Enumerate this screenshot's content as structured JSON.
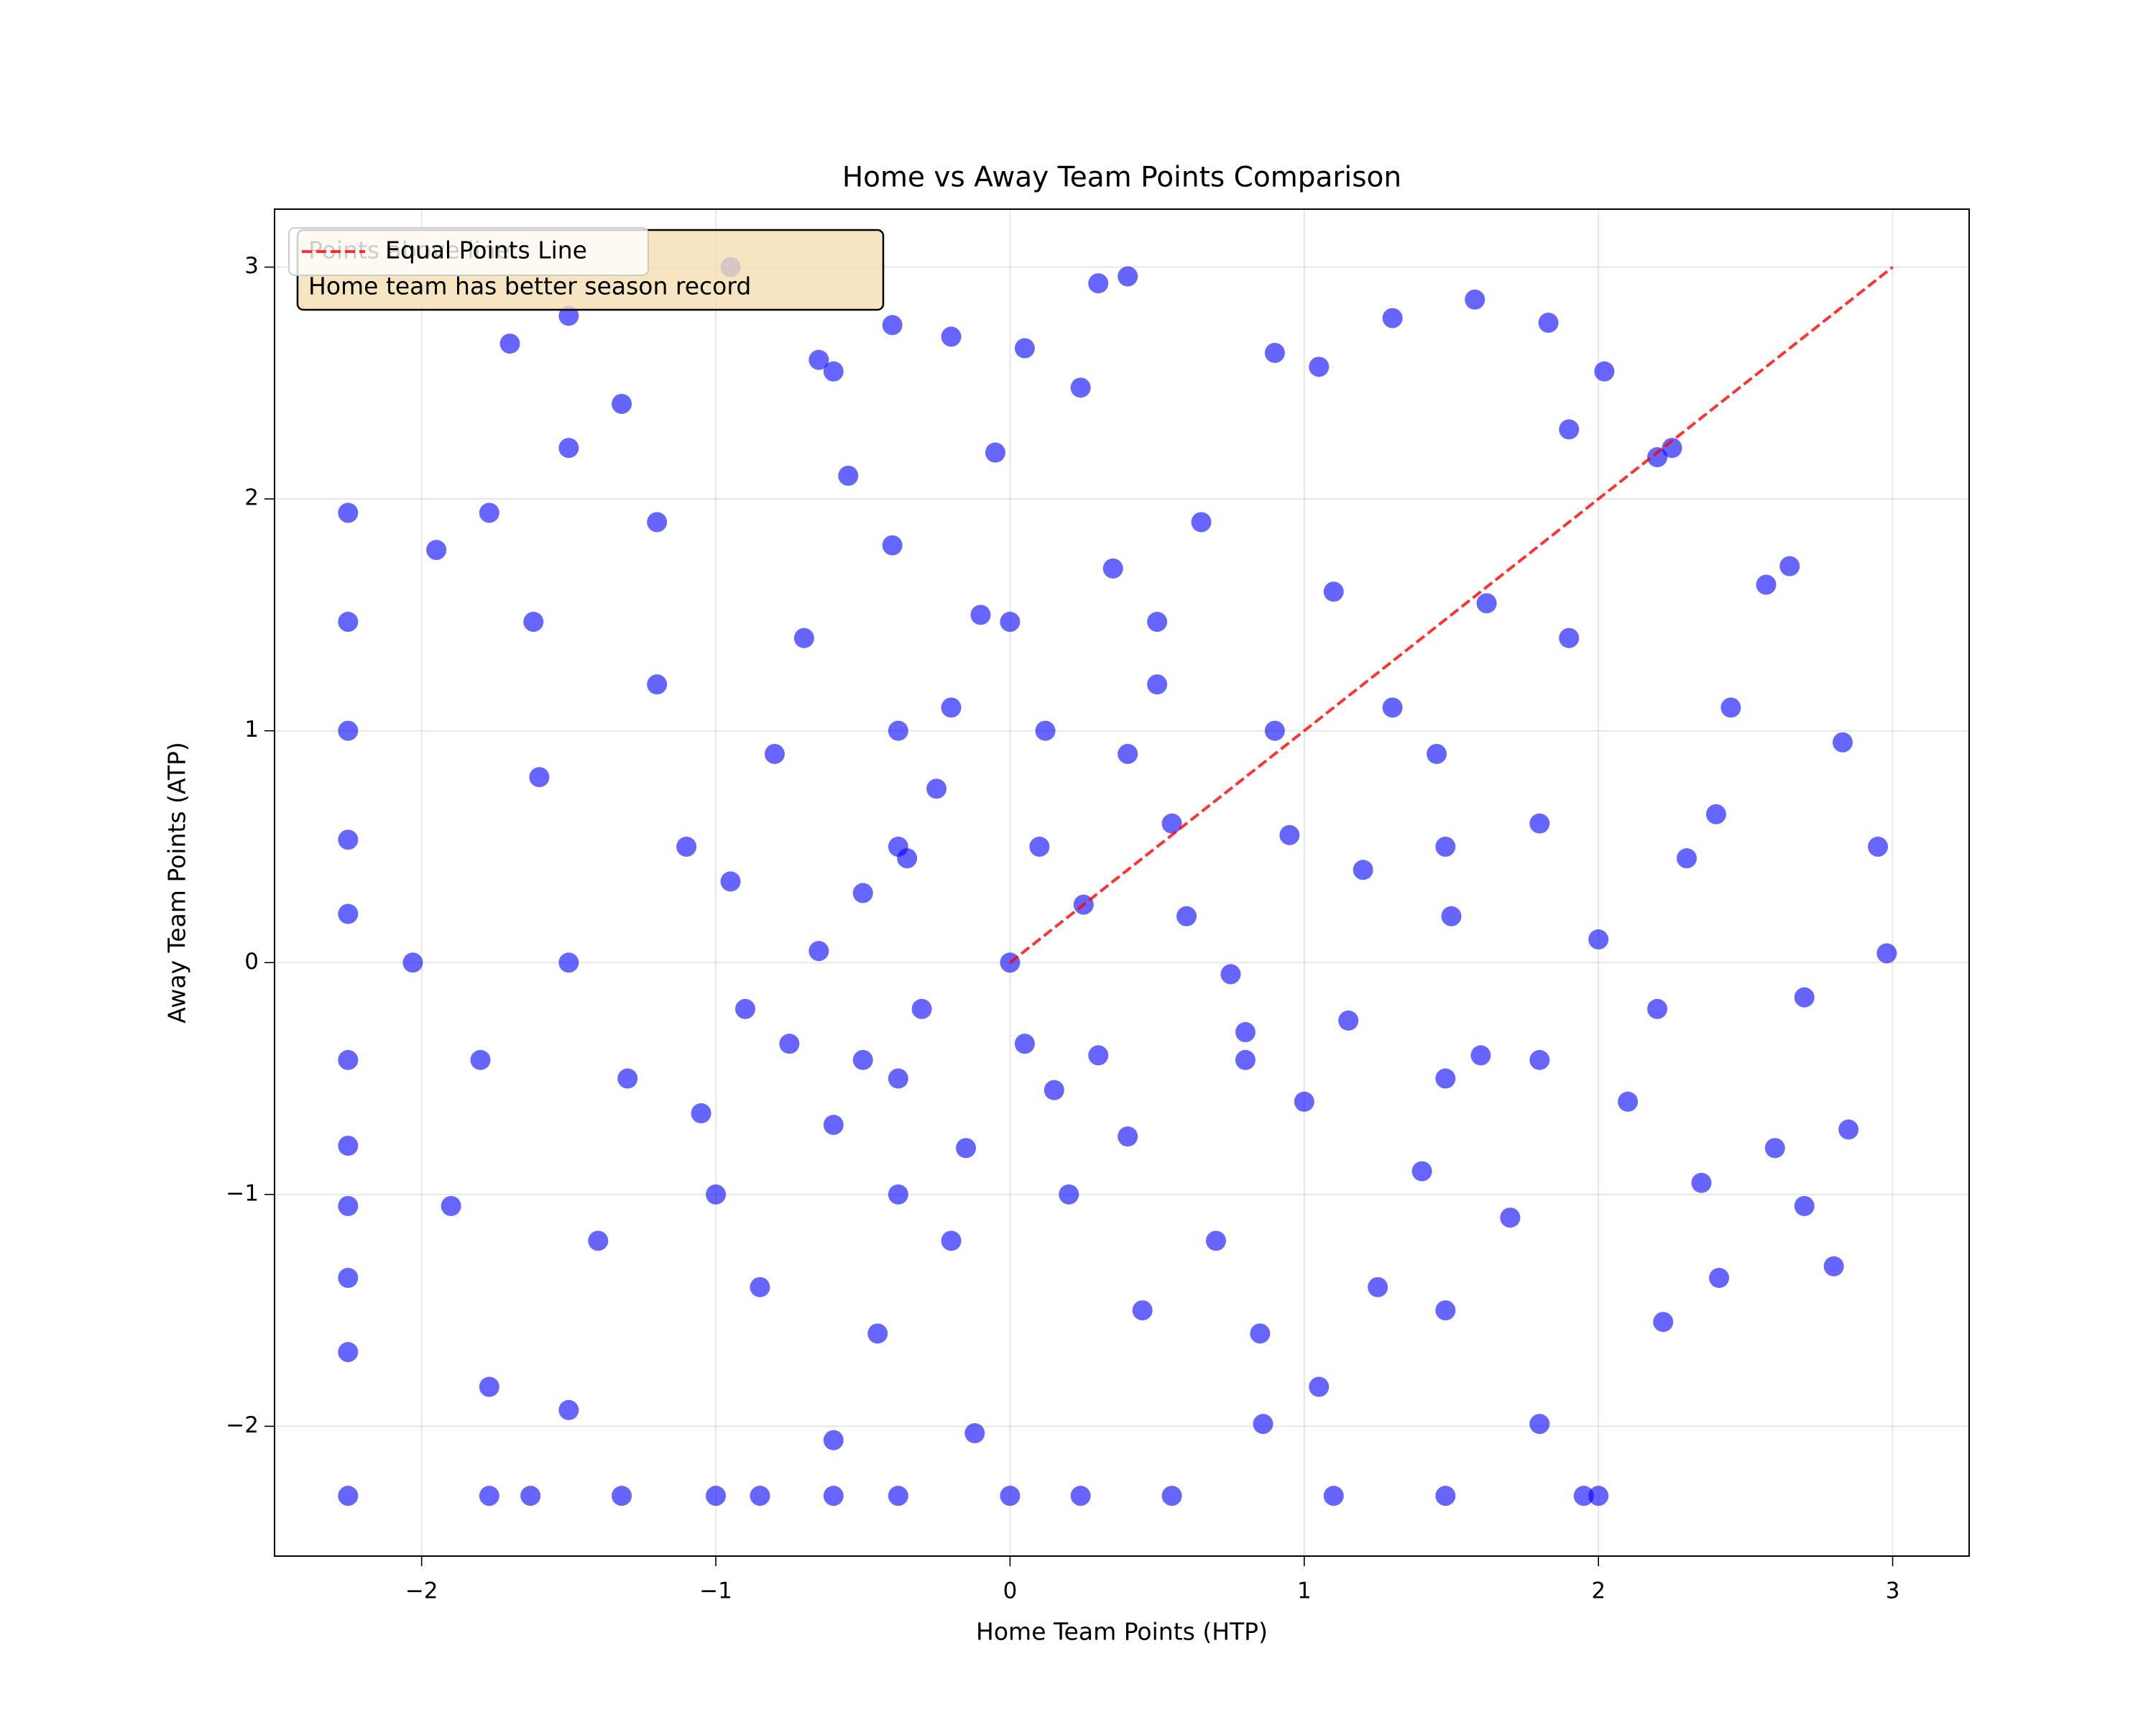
{
  "chart_data": {
    "type": "scatter",
    "title": "Home vs Away Team Points Comparison",
    "x_label": "Home Team Points (HTP)",
    "y_label": "Away Team Points (ATP)",
    "color": "blue",
    "x": [
      -2.25,
      -2.25,
      -2.25,
      -2.25,
      -2.25,
      -2.25,
      -2.25,
      -2.25,
      -2.25,
      -2.25,
      -2.25,
      -2.03,
      -1.95,
      -1.77,
      -1.7,
      -1.5,
      -1.5,
      -0.95,
      0.3,
      0.4,
      1.58,
      1.83,
      2.02,
      2.57,
      2.65,
      2.83,
      2.95,
      2.98,
      2.7,
      2.85,
      2.8,
      2.7,
      2.6,
      2.22,
      2.0,
      1.95,
      1.48,
      1.1,
      0.55,
      0.24,
      0,
      -0.38,
      -0.6,
      -0.85,
      -1.0,
      -1.32,
      -1.63,
      -1.77,
      -0.12,
      -0.6,
      0.86,
      1.8,
      -1.5,
      -1.77,
      1.05,
      2.41,
      2.4,
      2.45,
      2.2,
      2.25,
      1.9,
      0.9,
      1.05,
      -0.65,
      -0.4,
      0.05,
      0.24,
      -0.2,
      -1.32,
      -0.6,
      1.3,
      -0.5,
      -0.3,
      0.1,
      0.3,
      -0.8,
      -0.6,
      0.5,
      0.8,
      -0.1,
      0.2,
      -0.4,
      0.6,
      1.0,
      -0.9,
      1.2,
      -0.2,
      0.4,
      -0.7,
      0.9,
      1.4,
      -1.1,
      -1.0,
      0.0,
      0.15,
      -0.25,
      0.7,
      1.5,
      1.6,
      1.8,
      -1.3,
      -1.2,
      0.35,
      -0.55,
      0.65,
      1.1,
      1.3,
      -0.05,
      0.45,
      -0.45,
      1.7,
      2.0,
      2.1,
      -1.5,
      -1.6,
      -1.4,
      0.85,
      -0.85,
      1.9,
      2.2,
      0.55,
      -0.15,
      -0.65,
      0.25,
      0.05,
      -0.35,
      0.75,
      1.15,
      -0.95,
      0.95,
      -1.05,
      1.45,
      -0.2,
      0.12,
      -0.75,
      0.4,
      1.25,
      -1.2,
      1.62,
      2.3,
      2.35,
      -1.8,
      -1.9,
      -1.62,
      -0.38,
      -0.38,
      -0.38,
      -0.38,
      1.48,
      1.48,
      1.48,
      0,
      0.5,
      -0.5,
      0.8,
      1.8
    ],
    "y": [
      1.94,
      1.47,
      1.0,
      0.53,
      0.21,
      -0.42,
      -0.79,
      -1.05,
      -1.36,
      -1.68,
      -2.3,
      0,
      1.78,
      1.94,
      2.67,
      2.22,
      2.79,
      3.0,
      2.93,
      2.96,
      2.86,
      2.76,
      2.55,
      1.63,
      1.71,
      0.95,
      0.5,
      0.04,
      -0.15,
      -0.72,
      -1.31,
      -1.05,
      -0.8,
      -1.55,
      -2.3,
      -2.3,
      -2.3,
      -2.3,
      -2.3,
      -2.3,
      -2.3,
      -2.3,
      -2.3,
      -2.3,
      -2.3,
      -2.3,
      -2.3,
      -2.3,
      -2.03,
      -2.06,
      -1.99,
      -1.99,
      -1.93,
      -1.83,
      -1.83,
      -1.36,
      0.64,
      1.1,
      2.18,
      2.22,
      2.3,
      2.63,
      2.57,
      2.6,
      2.75,
      2.65,
      2.48,
      2.7,
      2.41,
      2.55,
      2.78,
      0.3,
      -0.2,
      0.5,
      -0.4,
      0.9,
      -0.7,
      1.2,
      -0.3,
      1.5,
      -1.0,
      1.8,
      0.2,
      -0.6,
      -0.2,
      0.4,
      -1.2,
      0.9,
      1.4,
      1.0,
      -0.9,
      0.5,
      -1.0,
      0.0,
      -0.55,
      0.75,
      -1.2,
      0.2,
      -0.4,
      0.6,
      -0.5,
      1.2,
      1.7,
      2.1,
      1.9,
      1.6,
      1.1,
      2.2,
      -1.5,
      -1.6,
      -1.1,
      0.1,
      -0.6,
      0.0,
      0.8,
      -1.2,
      -1.6,
      -1.4,
      1.4,
      -0.2,
      0.6,
      -0.8,
      0.05,
      0.25,
      -0.35,
      0.45,
      -0.05,
      -0.25,
      0.35,
      0.55,
      -0.65,
      0.9,
      1.1,
      1.0,
      -0.35,
      -0.75,
      -1.4,
      1.9,
      1.55,
      0.45,
      -0.95,
      -0.42,
      -1.05,
      1.47,
      1.0,
      -0.5,
      0.5,
      -1.0,
      -0.5,
      0.5,
      -1.5,
      1.47,
      1.47,
      -0.42,
      -0.42,
      -0.42
    ],
    "reference_line": {
      "name": "Equal Points Line",
      "color": "red",
      "x": [
        0,
        3
      ],
      "y": [
        0,
        3
      ]
    },
    "annotation": [
      "Points above line:",
      "Home team has better season record"
    ],
    "xlim": [
      -2.5,
      3.26
    ],
    "ylim": [
      -2.56,
      3.25
    ],
    "xticks": [
      {
        "value": -2,
        "label": "−2"
      },
      {
        "value": -1,
        "label": "−1"
      },
      0,
      1,
      2,
      3
    ],
    "yticks": [
      {
        "value": -2,
        "label": "−2"
      },
      {
        "value": -1,
        "label": "−1"
      },
      0,
      1,
      2,
      3
    ],
    "grid": true,
    "legend": "upper left"
  }
}
